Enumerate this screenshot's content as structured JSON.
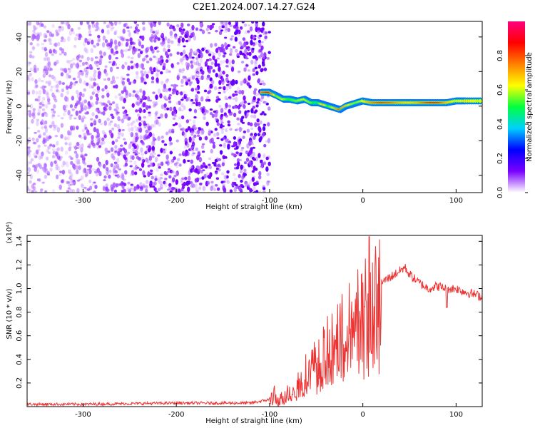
{
  "title": "C2E1.2024.007.14.27.G24",
  "chart_data": [
    {
      "type": "heatmap",
      "xlabel": "Height of straight line (km)",
      "ylabel": "Frequency (Hz)",
      "xlim": [
        -360,
        128
      ],
      "ylim": [
        -50,
        49
      ],
      "xticks": [
        -300,
        -200,
        -100,
        0,
        100
      ],
      "yticks": [
        -40,
        -20,
        0,
        20,
        40
      ],
      "colorbar": {
        "label": "Normalized spectral amplitude",
        "range": [
          0,
          1
        ],
        "ticks": [
          "0.0",
          "0.2",
          "0.4",
          "0.6",
          "0.8"
        ],
        "colors": [
          "#ffffff",
          "#7a00ff",
          "#0000ff",
          "#00d0ff",
          "#00ff40",
          "#ffff00",
          "#ff8000",
          "#ff0000",
          "#ff0080"
        ]
      },
      "noise_region_x": [
        -360,
        -100
      ],
      "signal_track": {
        "x": [
          -108,
          -100,
          -92,
          -85,
          -78,
          -70,
          -62,
          -55,
          -48,
          -42,
          -36,
          -30,
          -24,
          -18,
          -12,
          -6,
          0,
          10,
          20,
          30,
          40,
          50,
          60,
          70,
          80,
          90,
          100,
          110,
          128
        ],
        "y": [
          8,
          8,
          6,
          4,
          4,
          3,
          4,
          2,
          2,
          1,
          0,
          -1,
          -2,
          0,
          1,
          2,
          3,
          2,
          2,
          2,
          2,
          2,
          2,
          2,
          2,
          2,
          3,
          3,
          3
        ],
        "amplitude": [
          0.75,
          0.92,
          0.55,
          0.6,
          0.5,
          0.55,
          0.6,
          0.55,
          0.45,
          0.7,
          0.5,
          0.65,
          0.8,
          0.7,
          0.6,
          0.55,
          0.6,
          0.75,
          0.85,
          0.8,
          0.7,
          0.65,
          0.7,
          0.85,
          0.9,
          0.7,
          0.6,
          0.65,
          0.6
        ]
      }
    },
    {
      "type": "line",
      "xlabel": "Height of straight line (km)",
      "ylabel": "SNR (10 * v/v)",
      "yscale_label": "(x10⁴)",
      "xlim": [
        -360,
        128
      ],
      "ylim": [
        0,
        1.45
      ],
      "xticks": [
        -300,
        -200,
        -100,
        0,
        100
      ],
      "yticks": [
        0.2,
        0.4,
        0.6,
        0.8,
        1.0,
        1.2,
        1.4
      ],
      "series": [
        {
          "color": "#ee3333",
          "x": [
            -360,
            -300,
            -200,
            -120,
            -100,
            -95,
            -90,
            -85,
            -80,
            -70,
            -60,
            -50,
            -40,
            -30,
            -20,
            -10,
            0,
            8,
            10,
            20,
            30,
            40,
            45,
            50,
            60,
            70,
            80,
            90,
            100,
            110,
            120,
            128
          ],
          "y": [
            0.02,
            0.02,
            0.03,
            0.03,
            0.06,
            0.1,
            0.04,
            0.08,
            0.12,
            0.2,
            0.32,
            0.4,
            0.5,
            0.65,
            0.7,
            0.8,
            0.9,
            1.0,
            0.95,
            1.05,
            1.1,
            1.15,
            1.18,
            1.12,
            1.05,
            1.0,
            1.02,
            1.0,
            1.0,
            0.97,
            0.95,
            0.93
          ]
        }
      ]
    }
  ]
}
